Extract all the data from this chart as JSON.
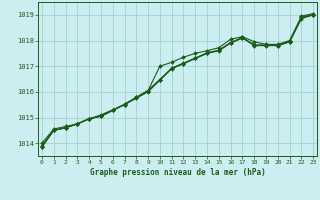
{
  "title": "Graphe pression niveau de la mer (hPa)",
  "xlabel_ticks": [
    0,
    1,
    2,
    3,
    4,
    5,
    6,
    7,
    8,
    9,
    10,
    11,
    12,
    13,
    14,
    15,
    16,
    17,
    18,
    19,
    20,
    21,
    22,
    23
  ],
  "ylim": [
    1013.5,
    1019.5
  ],
  "yticks": [
    1014,
    1015,
    1016,
    1017,
    1018,
    1019
  ],
  "xlim": [
    -0.3,
    23.3
  ],
  "background_color": "#cceef0",
  "grid_color": "#99cccc",
  "line_color": "#1a5c1a",
  "series": [
    [
      1014.0,
      1014.55,
      1014.65,
      1014.75,
      1014.95,
      1015.1,
      1015.3,
      1015.5,
      1015.75,
      1016.0,
      1016.45,
      1016.9,
      1017.1,
      1017.3,
      1017.5,
      1017.6,
      1017.9,
      1018.1,
      1017.8,
      1017.8,
      1017.8,
      1017.95,
      1018.85,
      1019.0
    ],
    [
      1013.9,
      1014.5,
      1014.6,
      1014.75,
      1014.95,
      1015.05,
      1015.28,
      1015.52,
      1015.78,
      1016.05,
      1016.48,
      1016.92,
      1017.12,
      1017.32,
      1017.52,
      1017.62,
      1017.92,
      1018.12,
      1017.82,
      1017.82,
      1017.82,
      1017.97,
      1018.9,
      1019.0
    ],
    [
      1013.85,
      1014.5,
      1014.6,
      1014.75,
      1014.95,
      1015.05,
      1015.28,
      1015.5,
      1015.78,
      1016.05,
      1016.48,
      1016.92,
      1017.1,
      1017.3,
      1017.5,
      1017.62,
      1017.92,
      1018.1,
      1017.82,
      1017.82,
      1017.8,
      1017.95,
      1018.9,
      1019.0
    ],
    [
      1013.85,
      1014.5,
      1014.6,
      1014.75,
      1014.95,
      1015.05,
      1015.28,
      1015.5,
      1015.78,
      1016.05,
      1017.0,
      1017.15,
      1017.35,
      1017.5,
      1017.6,
      1017.72,
      1018.05,
      1018.15,
      1017.95,
      1017.85,
      1017.85,
      1018.0,
      1018.95,
      1019.05
    ]
  ]
}
